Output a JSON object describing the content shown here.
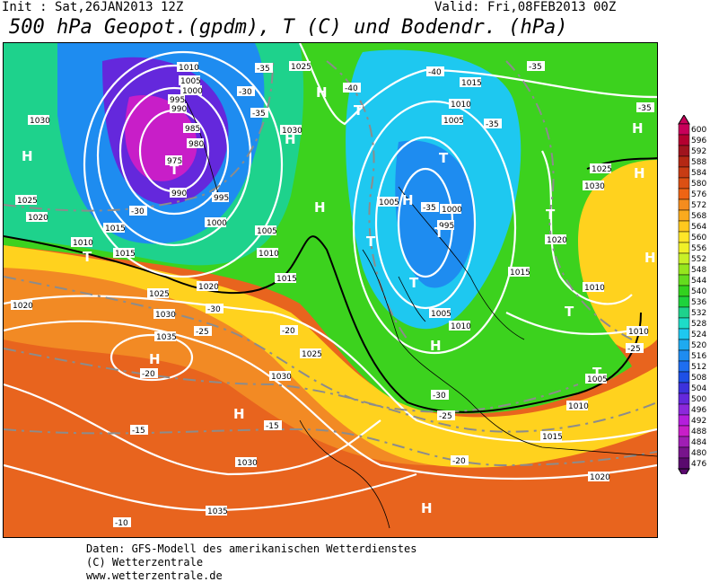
{
  "header": {
    "init": "Init : Sat,26JAN2013 12Z",
    "valid": "Valid: Fri,08FEB2013 00Z",
    "title": "500 hPa Geopot.(gpdm), T (C) und Bodendr. (hPa)"
  },
  "legend": {
    "values": [
      "600",
      "596",
      "592",
      "588",
      "584",
      "580",
      "576",
      "572",
      "568",
      "564",
      "560",
      "556",
      "552",
      "548",
      "544",
      "540",
      "536",
      "532",
      "528",
      "524",
      "520",
      "516",
      "512",
      "508",
      "504",
      "500",
      "496",
      "492",
      "488",
      "484",
      "480",
      "476"
    ],
    "colors": [
      "#c8005a",
      "#b40030",
      "#a0141e",
      "#b42814",
      "#c83c14",
      "#dc5014",
      "#ef6414",
      "#f58c1e",
      "#faaa1e",
      "#ffc81e",
      "#ffe628",
      "#f0f028",
      "#c8f028",
      "#96e61e",
      "#64dc1e",
      "#32d21e",
      "#1ed23c",
      "#1ed28c",
      "#1edcc8",
      "#1ec8f0",
      "#1eaaf0",
      "#1e8cf0",
      "#1e6ef0",
      "#1e50e6",
      "#3c32dc",
      "#6428dc",
      "#8c28dc",
      "#b41edc",
      "#c81ec8",
      "#a01eb4",
      "#78148c",
      "#5a0a6e"
    ]
  },
  "map": {
    "pressure_labels": [
      "1010",
      "1005",
      "1000",
      "995",
      "990",
      "985",
      "980",
      "975",
      "990",
      "995",
      "1000",
      "1005",
      "1010",
      "1015",
      "1020",
      "1025",
      "1030",
      "1035",
      "1030",
      "1025",
      "1020",
      "1015",
      "1010",
      "1025",
      "1030",
      "1015",
      "1010",
      "1005",
      "1000",
      "995",
      "1005",
      "1010",
      "1015",
      "1020",
      "1025",
      "1030",
      "1035",
      "1030",
      "1020",
      "1025",
      "1030",
      "1010",
      "1005",
      "1015",
      "1010",
      "1005",
      "1010",
      "1015",
      "1020"
    ],
    "temp_labels": [
      "-35",
      "-30",
      "-35",
      "-40",
      "-40",
      "-35",
      "-35",
      "-30",
      "-25",
      "-20",
      "-20",
      "-15",
      "-15",
      "-20",
      "-25",
      "-25",
      "-30",
      "-35",
      "-10",
      "-30",
      "-35"
    ],
    "highs": [
      "H",
      "H",
      "H",
      "H",
      "H",
      "H",
      "H",
      "H",
      "H",
      "H",
      "H",
      "H"
    ],
    "lows": [
      "T",
      "T",
      "T",
      "T",
      "T",
      "T",
      "T",
      "T",
      "T",
      "T"
    ]
  },
  "footer": {
    "line1": "Daten: GFS-Modell des amerikanischen Wetterdienstes",
    "line2": "(C) Wetterzentrale",
    "line3": "www.wetterzentrale.de"
  }
}
